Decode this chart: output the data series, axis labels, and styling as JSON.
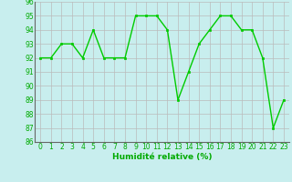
{
  "x": [
    0,
    1,
    2,
    3,
    4,
    5,
    6,
    7,
    8,
    9,
    10,
    11,
    12,
    13,
    14,
    15,
    16,
    17,
    18,
    19,
    20,
    21,
    22,
    23
  ],
  "y": [
    92,
    92,
    93,
    93,
    92,
    94,
    92,
    92,
    92,
    95,
    95,
    95,
    94,
    89,
    91,
    93,
    94,
    95,
    95,
    94,
    94,
    92,
    87,
    89
  ],
  "line_color": "#00cc00",
  "marker_color": "#00cc00",
  "bg_color": "#c8eeee",
  "grid_color": "#bbbbbb",
  "xlabel": "Humidité relative (%)",
  "xlabel_color": "#00aa00",
  "tick_color": "#00aa00",
  "ylim": [
    86,
    96
  ],
  "xlim_min": -0.5,
  "xlim_max": 23.5,
  "yticks": [
    86,
    87,
    88,
    89,
    90,
    91,
    92,
    93,
    94,
    95,
    96
  ],
  "xticks": [
    0,
    1,
    2,
    3,
    4,
    5,
    6,
    7,
    8,
    9,
    10,
    11,
    12,
    13,
    14,
    15,
    16,
    17,
    18,
    19,
    20,
    21,
    22,
    23
  ],
  "tick_fontsize": 5.5,
  "xlabel_fontsize": 6.5,
  "line_width": 1.0,
  "marker_size": 2.0
}
